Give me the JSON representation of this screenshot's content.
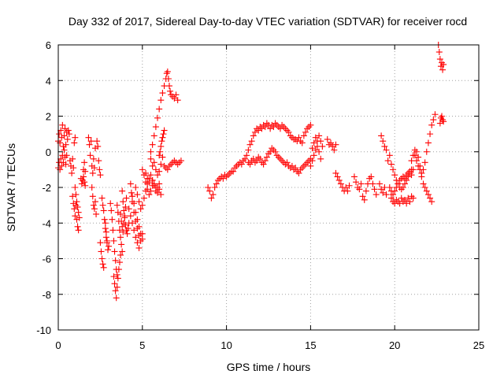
{
  "chart_data": {
    "type": "scatter",
    "title": "Day 332 of 2017, Sidereal Day-to-day VTEC variation (SDTVAR) for receiver rocd",
    "xlabel": "GPS time / hours",
    "ylabel": "SDTVAR / TECUs",
    "xlim": [
      0,
      25
    ],
    "ylim": [
      -10,
      6
    ],
    "xticks": [
      0,
      5,
      10,
      15,
      20,
      25
    ],
    "xtick_labels": [
      "0",
      "5",
      "10",
      "15",
      "20",
      "25"
    ],
    "yticks": [
      -10,
      -8,
      -6,
      -4,
      -2,
      0,
      2,
      4,
      6
    ],
    "ytick_labels": [
      "-10",
      "-8",
      "-6",
      "-4",
      "-2",
      "0",
      "2",
      "4",
      "6"
    ],
    "grid": true,
    "marker": "+",
    "color": "#ff0000",
    "series": [
      {
        "name": "SDTVAR",
        "x": [
          0.0,
          0.05,
          0.1,
          0.15,
          0.2,
          0.25,
          0.3,
          0.35,
          0.4,
          0.45,
          0.5,
          0.55,
          0.6,
          0.65,
          0.0,
          0.05,
          0.1,
          0.15,
          0.2,
          0.25,
          0.3,
          0.35,
          0.4,
          0.45,
          0.5,
          0.7,
          0.75,
          0.8,
          0.85,
          0.9,
          0.95,
          1.0,
          0.85,
          0.9,
          0.95,
          1.0,
          1.05,
          1.1,
          1.15,
          1.2,
          1.0,
          1.05,
          1.1,
          1.15,
          1.2,
          1.25,
          1.35,
          1.4,
          1.45,
          1.5,
          1.55,
          1.6,
          1.5,
          1.55,
          1.6,
          1.8,
          1.85,
          1.9,
          1.95,
          2.0,
          2.05,
          2.1,
          2.15,
          2.2,
          2.0,
          2.05,
          2.1,
          2.15,
          2.2,
          2.25,
          2.3,
          2.35,
          2.4,
          2.45,
          2.5,
          2.6,
          2.65,
          2.7,
          2.75,
          2.8,
          2.85,
          2.9,
          2.5,
          2.55,
          2.6,
          2.65,
          2.7,
          2.8,
          2.85,
          2.9,
          2.95,
          3.0,
          3.1,
          3.15,
          3.2,
          3.25,
          3.3,
          3.35,
          3.4,
          3.45,
          3.5,
          3.3,
          3.35,
          3.4,
          3.45,
          3.5,
          3.55,
          3.6,
          3.65,
          3.7,
          3.5,
          3.55,
          3.6,
          3.65,
          3.7,
          3.75,
          3.8,
          3.8,
          3.85,
          3.9,
          3.95,
          4.0,
          4.05,
          4.1,
          4.15,
          4.2,
          3.7,
          3.75,
          3.8,
          3.85,
          3.9,
          3.95,
          4.0,
          4.05,
          4.2,
          4.3,
          4.4,
          4.5,
          4.6,
          4.7,
          4.8,
          4.9,
          5.0,
          4.3,
          4.35,
          4.4,
          4.5,
          4.6,
          4.7,
          4.8,
          4.4,
          4.5,
          4.6,
          4.7,
          4.8,
          4.9,
          5.0,
          4.6,
          4.7,
          4.8,
          4.9,
          5.0,
          5.1,
          5.2,
          5.3,
          5.4,
          5.0,
          5.1,
          5.2,
          5.3,
          5.4,
          5.5,
          5.6,
          5.2,
          5.3,
          5.4,
          5.5,
          5.6,
          5.7,
          5.8,
          5.9,
          6.0,
          5.5,
          5.6,
          5.7,
          5.8,
          5.9,
          6.0,
          6.1,
          6.2,
          6.3,
          6.4,
          6.45,
          6.5,
          6.55,
          6.6,
          6.65,
          6.7,
          6.8,
          6.9,
          7.0,
          7.1,
          5.5,
          5.6,
          5.7,
          5.8,
          5.9,
          6.0,
          6.1,
          6.2,
          6.0,
          6.05,
          6.1,
          6.15,
          6.2,
          6.25,
          6.3,
          6.3,
          6.4,
          6.5,
          6.6,
          6.7,
          6.8,
          6.9,
          7.0,
          7.1,
          7.2,
          7.3,
          5.6,
          5.7,
          5.8,
          5.9,
          6.0,
          6.1,
          8.9,
          9.0,
          9.1,
          9.2,
          9.3,
          9.4,
          9.5,
          9.6,
          9.7,
          9.8,
          9.9,
          10.0,
          10.1,
          10.2,
          10.3,
          10.4,
          10.5,
          10.6,
          10.7,
          10.8,
          10.9,
          11.0,
          11.1,
          11.2,
          11.3,
          11.4,
          11.5,
          11.6,
          11.7,
          11.8,
          11.9,
          12.0,
          12.1,
          12.2,
          12.3,
          12.4,
          12.5,
          12.6,
          12.7,
          12.8,
          12.9,
          13.0,
          13.1,
          13.2,
          13.3,
          13.4,
          13.5,
          13.6,
          13.7,
          13.8,
          13.9,
          14.0,
          14.1,
          14.2,
          14.3,
          14.4,
          14.5,
          14.6,
          14.7,
          14.8,
          14.9,
          15.0,
          11.3,
          11.4,
          11.5,
          11.6,
          11.7,
          11.8,
          11.9,
          12.0,
          12.1,
          12.2,
          12.3,
          12.4,
          12.5,
          12.6,
          12.7,
          12.8,
          12.9,
          13.0,
          13.1,
          13.2,
          13.3,
          13.4,
          13.5,
          13.6,
          13.7,
          13.8,
          13.9,
          14.0,
          14.1,
          14.2,
          14.3,
          14.4,
          14.5,
          14.6,
          14.7,
          14.8,
          14.9,
          15.0,
          15.1,
          15.2,
          15.3,
          15.4,
          15.5,
          15.6,
          15.7,
          15.0,
          15.1,
          15.2,
          15.3,
          15.4,
          15.5,
          15.6,
          16.0,
          16.1,
          16.2,
          16.3,
          16.4,
          16.5,
          16.5,
          16.6,
          16.7,
          16.8,
          16.9,
          17.0,
          17.1,
          17.2,
          17.3,
          17.6,
          17.7,
          17.8,
          17.9,
          18.0,
          18.1,
          18.2,
          18.3,
          18.4,
          18.5,
          18.6,
          18.7,
          18.8,
          18.9,
          19.1,
          19.2,
          19.3,
          19.4,
          19.5,
          19.2,
          19.3,
          19.4,
          19.5,
          19.6,
          19.7,
          19.8,
          19.9,
          20.0,
          20.1,
          20.2,
          20.3,
          20.4,
          20.5,
          20.6,
          20.7,
          20.8,
          20.9,
          21.0,
          19.8,
          19.9,
          20.0,
          20.1,
          20.2,
          20.3,
          20.4,
          20.5,
          20.6,
          20.7,
          20.8,
          20.9,
          21.0,
          21.1,
          19.7,
          19.8,
          19.9,
          20.0,
          20.1,
          20.2,
          20.3,
          20.4,
          20.5,
          20.6,
          20.7,
          20.8,
          20.9,
          21.0,
          21.1,
          21.0,
          21.1,
          21.2,
          21.3,
          21.4,
          21.5,
          21.6,
          21.7,
          21.8,
          21.9,
          22.0,
          22.1,
          22.2,
          22.3,
          22.4,
          21.2,
          21.3,
          21.4,
          21.5,
          21.6,
          21.7,
          21.8,
          21.9,
          22.0,
          22.1,
          22.2,
          22.6,
          22.65,
          22.7,
          22.75,
          22.8,
          22.85,
          22.9,
          22.7,
          22.75,
          22.8,
          22.85,
          22.9
        ],
        "y": [
          0.6,
          1.0,
          0.5,
          1.2,
          0.8,
          1.5,
          0.3,
          0.9,
          1.3,
          0.4,
          1.1,
          0.7,
          1.2,
          1.0,
          -0.9,
          -0.6,
          -1.0,
          -0.4,
          -0.8,
          -0.2,
          -0.6,
          0.1,
          -0.3,
          -0.7,
          -0.2,
          -0.5,
          -0.8,
          -1.2,
          -0.4,
          -0.9,
          0.5,
          0.8,
          -2.5,
          -2.9,
          -3.2,
          -3.6,
          -3.0,
          -3.8,
          -4.2,
          -4.4,
          -2.0,
          -2.4,
          -2.8,
          -3.1,
          -3.4,
          -3.7,
          -1.5,
          -1.8,
          -1.6,
          -1.4,
          -1.7,
          -1.9,
          -1.0,
          -0.6,
          -1.1,
          0.8,
          0.4,
          -0.2,
          0.6,
          -0.8,
          -1.2,
          -0.4,
          -0.9,
          0.2,
          -2.0,
          -2.5,
          -3.0,
          -3.2,
          -2.8,
          -3.5,
          0.6,
          0.3,
          -0.5,
          -1.0,
          -1.3,
          -2.6,
          -3.0,
          -3.3,
          -3.8,
          -4.3,
          -4.8,
          -5.1,
          -5.1,
          -5.6,
          -6.0,
          -6.3,
          -6.5,
          -4.0,
          -4.5,
          -5.0,
          -5.5,
          -5.3,
          -2.9,
          -3.3,
          -3.8,
          -4.4,
          -5.0,
          -5.6,
          -6.1,
          -6.6,
          -6.9,
          -7.0,
          -7.4,
          -7.8,
          -8.2,
          -7.6,
          -7.1,
          -6.6,
          -6.2,
          -5.8,
          -3.0,
          -3.4,
          -3.9,
          -4.4,
          -4.8,
          -5.2,
          -5.6,
          -2.2,
          -2.8,
          -3.3,
          -3.7,
          -4.1,
          -4.4,
          -4.6,
          -4.3,
          -4.0,
          -3.5,
          -3.9,
          -4.2,
          -4.5,
          -4.0,
          -3.6,
          -3.1,
          -2.6,
          -3.2,
          -3.6,
          -4.0,
          -4.4,
          -4.8,
          -5.1,
          -5.4,
          -5.0,
          -4.6,
          -1.8,
          -2.3,
          -2.8,
          -3.4,
          -3.9,
          -4.3,
          -4.7,
          -2.5,
          -2.9,
          -3.4,
          -3.8,
          -4.2,
          -4.6,
          -4.9,
          -2.0,
          -2.4,
          -2.8,
          -3.2,
          -3.0,
          -2.6,
          -2.2,
          -1.8,
          -1.5,
          -1.0,
          -1.3,
          -1.7,
          -2.1,
          -2.4,
          -2.2,
          -1.9,
          -1.2,
          -1.5,
          -1.7,
          -1.3,
          -1.6,
          -1.9,
          -2.2,
          -2.0,
          -1.8,
          0.0,
          0.4,
          0.9,
          1.4,
          1.9,
          2.4,
          2.9,
          3.3,
          3.7,
          4.1,
          4.4,
          4.5,
          4.1,
          3.7,
          3.4,
          3.2,
          3.1,
          3.0,
          3.2,
          2.9,
          -0.4,
          -0.8,
          -0.6,
          -1.0,
          -1.3,
          -1.1,
          -0.7,
          -0.3,
          -0.2,
          0.0,
          0.3,
          0.6,
          0.8,
          1.0,
          1.2,
          -0.8,
          -0.9,
          -1.0,
          -0.8,
          -0.7,
          -0.6,
          -0.5,
          -0.6,
          -0.7,
          -0.6,
          -0.5,
          -1.6,
          -1.8,
          -2.0,
          -2.3,
          -2.1,
          -2.4,
          -2.0,
          -2.2,
          -2.6,
          -2.4,
          -2.0,
          -1.8,
          -1.6,
          -1.5,
          -1.4,
          -1.5,
          -1.3,
          -1.4,
          -1.3,
          -1.2,
          -1.1,
          -1.1,
          -0.9,
          -0.8,
          -0.7,
          -0.6,
          -0.7,
          -0.5,
          -0.4,
          -0.2,
          0.1,
          0.4,
          0.6,
          0.9,
          1.1,
          1.3,
          1.2,
          1.4,
          1.3,
          1.5,
          1.4,
          1.6,
          1.5,
          1.3,
          1.5,
          1.4,
          1.6,
          1.5,
          1.4,
          1.3,
          1.5,
          1.4,
          1.3,
          1.2,
          1.1,
          0.9,
          0.8,
          0.7,
          0.7,
          0.6,
          0.8,
          0.6,
          0.5,
          0.9,
          1.1,
          1.3,
          1.4,
          1.5,
          -0.6,
          -0.7,
          -0.5,
          -0.4,
          -0.6,
          -0.5,
          -0.3,
          -0.4,
          -0.6,
          -0.7,
          -0.5,
          -0.3,
          -0.1,
          0.0,
          0.2,
          0.1,
          0.0,
          -0.2,
          -0.3,
          -0.4,
          -0.5,
          -0.6,
          -0.7,
          -0.6,
          -0.8,
          -0.9,
          -0.8,
          -1.0,
          -0.9,
          -1.1,
          -1.2,
          -1.0,
          -0.9,
          -0.8,
          -0.7,
          -0.6,
          -0.5,
          -0.4,
          0.2,
          0.5,
          0.8,
          0.6,
          0.9,
          0.6,
          0.3,
          -0.8,
          -0.5,
          -0.2,
          0.1,
          0.3,
          0.0,
          -0.4,
          0.7,
          0.4,
          0.5,
          0.3,
          0.1,
          0.4,
          -1.2,
          -1.4,
          -1.6,
          -1.8,
          -2.0,
          -2.2,
          -2.0,
          -2.2,
          -1.9,
          -1.4,
          -1.7,
          -2.0,
          -2.1,
          -1.8,
          -2.5,
          -2.7,
          -2.2,
          -1.8,
          -1.5,
          -1.4,
          -1.8,
          -2.1,
          -2.4,
          -1.8,
          -2.1,
          -2.3,
          -2.0,
          -2.4,
          0.9,
          0.6,
          0.3,
          0.1,
          -0.5,
          -0.2,
          -0.7,
          -1.0,
          -1.3,
          -1.6,
          -1.8,
          -2.0,
          -2.1,
          -2.0,
          -1.8,
          -1.6,
          -1.4,
          -1.2,
          -1.0,
          -2.6,
          -2.8,
          -2.9,
          -2.7,
          -2.8,
          -2.9,
          -2.6,
          -2.8,
          -2.7,
          -2.9,
          -2.6,
          -2.8,
          -2.5,
          -2.6,
          -2.0,
          -2.2,
          -2.4,
          -2.2,
          -2.0,
          -1.8,
          -1.6,
          -1.5,
          -1.4,
          -1.5,
          -1.3,
          -1.2,
          -1.1,
          -1.3,
          -1.0,
          -0.5,
          -0.2,
          0.1,
          0.0,
          -0.3,
          -0.8,
          -1.2,
          -1.0,
          -0.6,
          0.0,
          0.5,
          1.0,
          1.5,
          1.8,
          2.1,
          -0.2,
          -0.5,
          -0.8,
          -1.0,
          -1.4,
          -1.8,
          -2.0,
          -2.2,
          -2.4,
          -2.6,
          -2.8,
          6.0,
          5.6,
          5.2,
          4.8,
          5.0,
          4.6,
          4.9,
          1.6,
          1.9,
          2.0,
          1.8,
          1.7
        ]
      }
    ]
  }
}
